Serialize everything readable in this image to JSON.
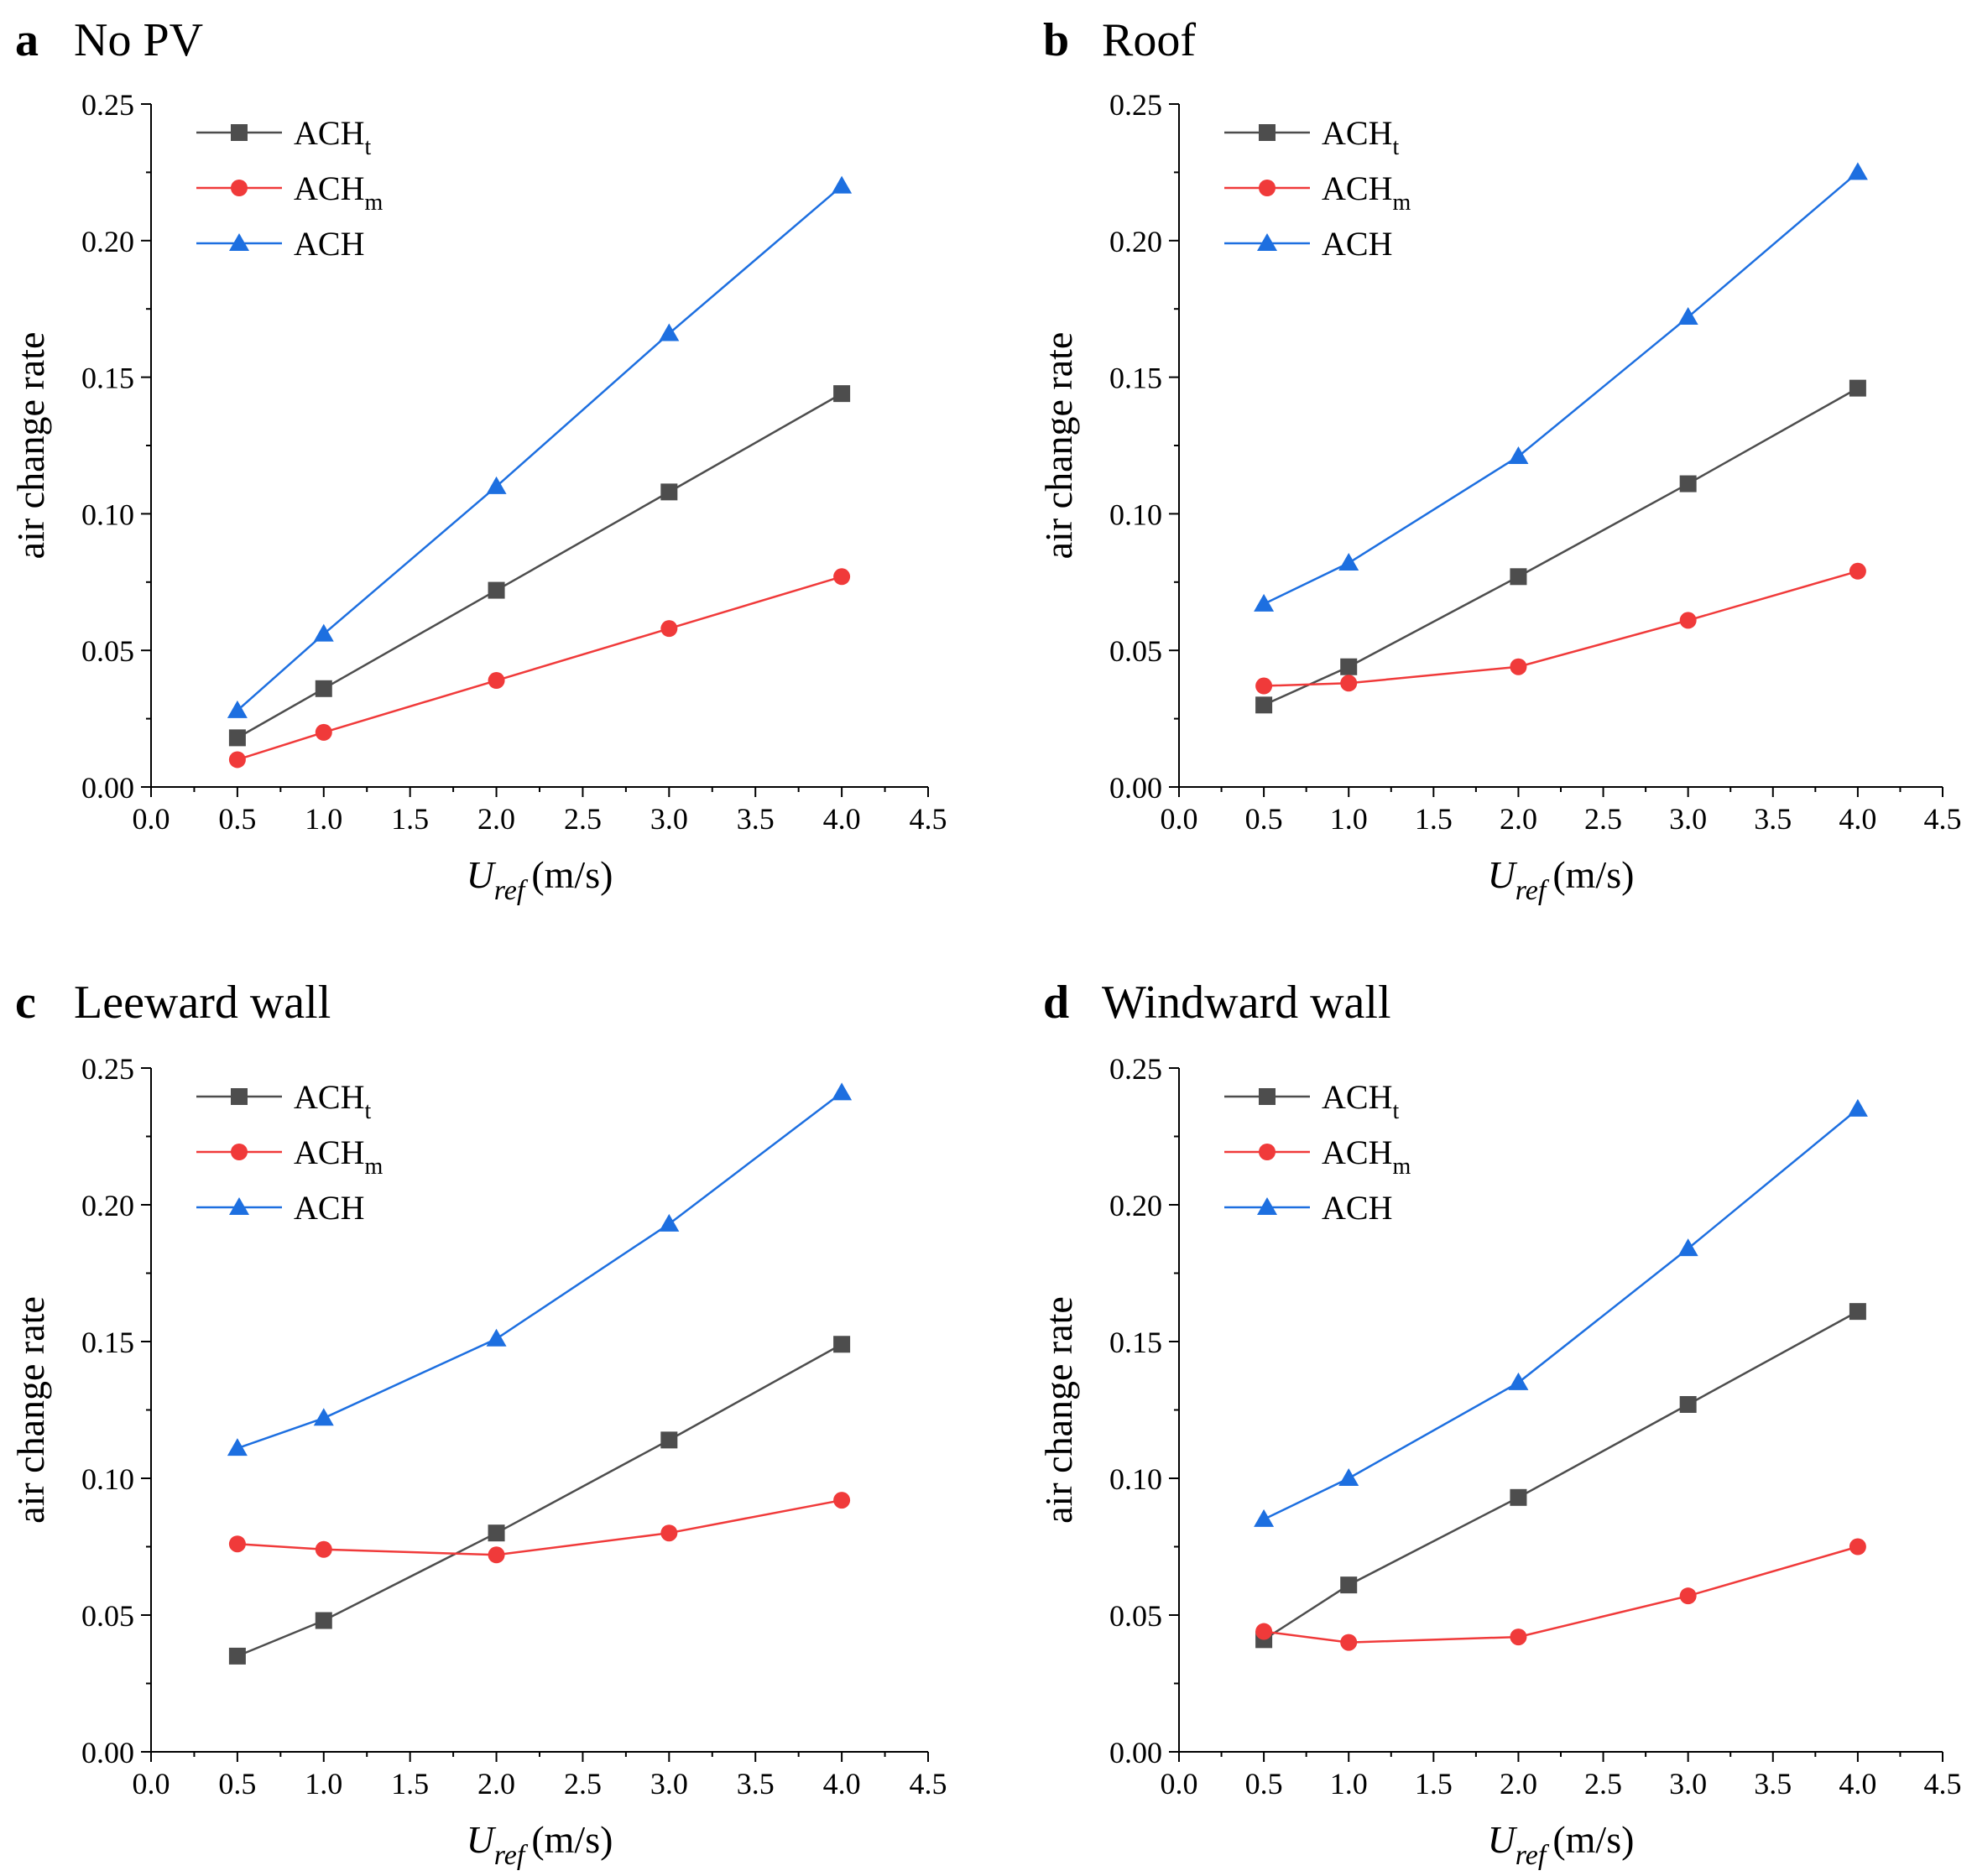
{
  "figure": {
    "ylabel": "air change rate",
    "xlabel_main": "U",
    "xlabel_sub": "ref",
    "xlabel_unit": "(m/s)"
  },
  "colors": {
    "ACHt": "#4d4d4d",
    "ACHm": "#f03a3a",
    "ACH": "#1d6fe0"
  },
  "chart_data": [
    {
      "type": "line",
      "panel": "a",
      "title": "No PV",
      "xlabel": "U_ref (m/s)",
      "ylabel": "air change rate",
      "xlim": [
        0,
        4.5
      ],
      "ylim": [
        0,
        0.25
      ],
      "xticks": [
        "0.0",
        "0.5",
        "1.0",
        "1.5",
        "2.0",
        "2.5",
        "3.0",
        "3.5",
        "4.0",
        "4.5"
      ],
      "yticks": [
        "0.00",
        "0.05",
        "0.10",
        "0.15",
        "0.20",
        "0.25"
      ],
      "x": [
        0.5,
        1.0,
        2.0,
        3.0,
        4.0
      ],
      "series": [
        {
          "key": "ACHt",
          "base": "ACH",
          "sub": "t",
          "marker": "square",
          "values": [
            0.018,
            0.036,
            0.072,
            0.108,
            0.144
          ]
        },
        {
          "key": "ACHm",
          "base": "ACH",
          "sub": "m",
          "marker": "circle",
          "values": [
            0.01,
            0.02,
            0.039,
            0.058,
            0.077
          ]
        },
        {
          "key": "ACH",
          "base": "ACH",
          "sub": "",
          "marker": "triangle",
          "values": [
            0.028,
            0.056,
            0.11,
            0.166,
            0.22
          ]
        }
      ]
    },
    {
      "type": "line",
      "panel": "b",
      "title": "Roof",
      "xlabel": "U_ref (m/s)",
      "ylabel": "air change rate",
      "xlim": [
        0,
        4.5
      ],
      "ylim": [
        0,
        0.25
      ],
      "xticks": [
        "0.0",
        "0.5",
        "1.0",
        "1.5",
        "2.0",
        "2.5",
        "3.0",
        "3.5",
        "4.0",
        "4.5"
      ],
      "yticks": [
        "0.00",
        "0.05",
        "0.10",
        "0.15",
        "0.20",
        "0.25"
      ],
      "x": [
        0.5,
        1.0,
        2.0,
        3.0,
        4.0
      ],
      "series": [
        {
          "key": "ACHt",
          "base": "ACH",
          "sub": "t",
          "marker": "square",
          "values": [
            0.03,
            0.044,
            0.077,
            0.111,
            0.146
          ]
        },
        {
          "key": "ACHm",
          "base": "ACH",
          "sub": "m",
          "marker": "circle",
          "values": [
            0.037,
            0.038,
            0.044,
            0.061,
            0.079
          ]
        },
        {
          "key": "ACH",
          "base": "ACH",
          "sub": "",
          "marker": "triangle",
          "values": [
            0.067,
            0.082,
            0.121,
            0.172,
            0.225
          ]
        }
      ]
    },
    {
      "type": "line",
      "panel": "c",
      "title": "Leeward wall",
      "xlabel": "U_ref (m/s)",
      "ylabel": "air change rate",
      "xlim": [
        0,
        4.5
      ],
      "ylim": [
        0,
        0.25
      ],
      "xticks": [
        "0.0",
        "0.5",
        "1.0",
        "1.5",
        "2.0",
        "2.5",
        "3.0",
        "3.5",
        "4.0",
        "4.5"
      ],
      "yticks": [
        "0.00",
        "0.05",
        "0.10",
        "0.15",
        "0.20",
        "0.25"
      ],
      "x": [
        0.5,
        1.0,
        2.0,
        3.0,
        4.0
      ],
      "series": [
        {
          "key": "ACHt",
          "base": "ACH",
          "sub": "t",
          "marker": "square",
          "values": [
            0.035,
            0.048,
            0.08,
            0.114,
            0.149
          ]
        },
        {
          "key": "ACHm",
          "base": "ACH",
          "sub": "m",
          "marker": "circle",
          "values": [
            0.076,
            0.074,
            0.072,
            0.08,
            0.092
          ]
        },
        {
          "key": "ACH",
          "base": "ACH",
          "sub": "",
          "marker": "triangle",
          "values": [
            0.111,
            0.122,
            0.151,
            0.193,
            0.241
          ]
        }
      ]
    },
    {
      "type": "line",
      "panel": "d",
      "title": "Windward wall",
      "xlabel": "U_ref (m/s)",
      "ylabel": "air change rate",
      "xlim": [
        0,
        4.5
      ],
      "ylim": [
        0,
        0.25
      ],
      "xticks": [
        "0.0",
        "0.5",
        "1.0",
        "1.5",
        "2.0",
        "2.5",
        "3.0",
        "3.5",
        "4.0",
        "4.5"
      ],
      "yticks": [
        "0.00",
        "0.05",
        "0.10",
        "0.15",
        "0.20",
        "0.25"
      ],
      "x": [
        0.5,
        1.0,
        2.0,
        3.0,
        4.0
      ],
      "series": [
        {
          "key": "ACHt",
          "base": "ACH",
          "sub": "t",
          "marker": "square",
          "values": [
            0.041,
            0.061,
            0.093,
            0.127,
            0.161
          ]
        },
        {
          "key": "ACHm",
          "base": "ACH",
          "sub": "m",
          "marker": "circle",
          "values": [
            0.044,
            0.04,
            0.042,
            0.057,
            0.075
          ]
        },
        {
          "key": "ACH",
          "base": "ACH",
          "sub": "",
          "marker": "triangle",
          "values": [
            0.085,
            0.1,
            0.135,
            0.184,
            0.235
          ]
        }
      ]
    }
  ]
}
